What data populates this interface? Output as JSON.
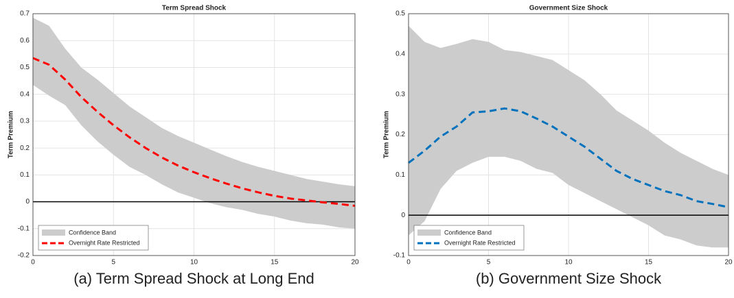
{
  "chart_data": [
    {
      "type": "line",
      "title": "Term Spread Shock",
      "ylabel": "Term Premium",
      "caption": "(a) Term Spread Shock at Long End",
      "x": [
        0,
        1,
        2,
        3,
        4,
        5,
        6,
        7,
        8,
        9,
        10,
        11,
        12,
        13,
        14,
        15,
        16,
        17,
        18,
        19,
        20
      ],
      "xlim": [
        0,
        20
      ],
      "xticks": [
        0,
        5,
        10,
        15,
        20
      ],
      "ylim": [
        -0.2,
        0.7
      ],
      "yticks": [
        -0.2,
        -0.1,
        0,
        0.1,
        0.2,
        0.3,
        0.4,
        0.5,
        0.6,
        0.7
      ],
      "grid": true,
      "legend": "lower left",
      "reference_line": 0,
      "band": {
        "name": "Confidence Band",
        "color": "#cccccc",
        "upper": [
          0.685,
          0.655,
          0.57,
          0.5,
          0.455,
          0.405,
          0.355,
          0.315,
          0.275,
          0.245,
          0.22,
          0.195,
          0.17,
          0.148,
          0.13,
          0.115,
          0.1,
          0.085,
          0.075,
          0.065,
          0.058
        ],
        "lower": [
          0.435,
          0.395,
          0.36,
          0.285,
          0.225,
          0.175,
          0.13,
          0.1,
          0.065,
          0.035,
          0.015,
          -0.005,
          -0.02,
          -0.03,
          -0.045,
          -0.055,
          -0.07,
          -0.08,
          -0.085,
          -0.095,
          -0.1
        ]
      },
      "series": [
        {
          "name": "Overnight Rate Restricted",
          "color": "#ff0000",
          "values": [
            0.535,
            0.51,
            0.455,
            0.39,
            0.335,
            0.285,
            0.24,
            0.2,
            0.165,
            0.135,
            0.11,
            0.088,
            0.068,
            0.05,
            0.035,
            0.022,
            0.012,
            0.005,
            -0.002,
            -0.008,
            -0.015
          ]
        }
      ]
    },
    {
      "type": "line",
      "title": "Government Size Shock",
      "ylabel": "Term Premium",
      "caption": "(b) Government Size Shock",
      "x": [
        0,
        1,
        2,
        3,
        4,
        5,
        6,
        7,
        8,
        9,
        10,
        11,
        12,
        13,
        14,
        15,
        16,
        17,
        18,
        19,
        20
      ],
      "xlim": [
        0,
        20
      ],
      "xticks": [
        0,
        5,
        10,
        15,
        20
      ],
      "ylim": [
        -0.1,
        0.5
      ],
      "yticks": [
        -0.1,
        0,
        0.1,
        0.2,
        0.3,
        0.4,
        0.5
      ],
      "grid": true,
      "legend": "lower left",
      "reference_line": 0,
      "band": {
        "name": "Confidence Band",
        "color": "#cccccc",
        "upper": [
          0.47,
          0.43,
          0.415,
          0.425,
          0.437,
          0.43,
          0.41,
          0.405,
          0.395,
          0.385,
          0.36,
          0.335,
          0.3,
          0.26,
          0.235,
          0.21,
          0.18,
          0.155,
          0.135,
          0.115,
          0.1
        ],
        "lower": [
          -0.05,
          -0.015,
          0.065,
          0.11,
          0.13,
          0.145,
          0.145,
          0.135,
          0.115,
          0.105,
          0.075,
          0.055,
          0.035,
          0.015,
          -0.005,
          -0.025,
          -0.05,
          -0.06,
          -0.075,
          -0.08,
          -0.08
        ]
      },
      "series": [
        {
          "name": "Overnight Rate Restricted",
          "color": "#0072bd",
          "values": [
            0.13,
            0.16,
            0.195,
            0.22,
            0.255,
            0.258,
            0.265,
            0.258,
            0.24,
            0.22,
            0.195,
            0.17,
            0.14,
            0.11,
            0.09,
            0.075,
            0.06,
            0.05,
            0.035,
            0.028,
            0.02
          ]
        }
      ]
    }
  ]
}
